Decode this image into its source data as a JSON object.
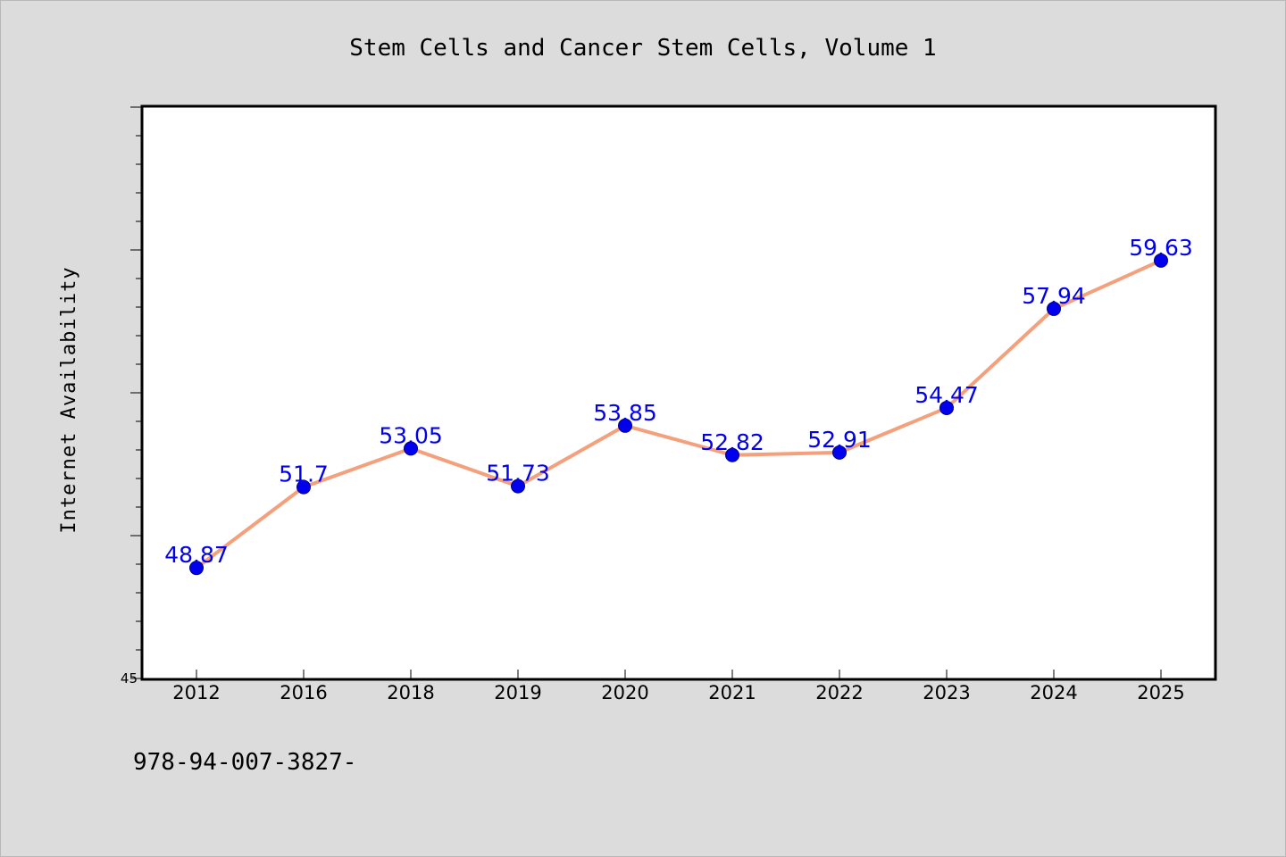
{
  "chart_data": {
    "type": "line",
    "title": "Stem Cells and Cancer Stem Cells, Volume 1",
    "xlabel": "",
    "ylabel": "Internet Availability",
    "categories": [
      "2012",
      "2016",
      "2018",
      "2019",
      "2020",
      "2021",
      "2022",
      "2023",
      "2024",
      "2025"
    ],
    "series": [
      {
        "values": [
          48.87,
          51.7,
          53.05,
          51.73,
          53.85,
          52.82,
          52.91,
          54.47,
          57.94,
          59.63
        ],
        "labels": [
          "48.87",
          "51.7",
          "53.05",
          "51.73",
          "53.85",
          "52.82",
          "52.91",
          "54.47",
          "57.94",
          "59.63"
        ],
        "line_color": "#f4a07c",
        "marker_color": "#0000ee"
      }
    ],
    "ylim": [
      45,
      65
    ],
    "y_tick_labels": [
      "45"
    ],
    "grid": false,
    "label_color": "#0000ee"
  },
  "footer": {
    "isbn": "978-94-007-3827-"
  }
}
